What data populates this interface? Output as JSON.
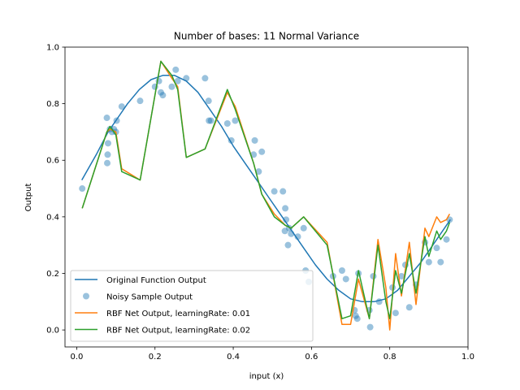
{
  "chart_data": {
    "type": "line",
    "title": "Number of bases: 11 Normal Variance",
    "xlabel": "input (x)",
    "ylabel": "Output",
    "xlim": [
      -0.03,
      1.0
    ],
    "ylim": [
      -0.06,
      1.0
    ],
    "xticks": [
      0.0,
      0.2,
      0.4,
      0.6,
      0.8,
      1.0
    ],
    "xtick_labels": [
      "0.0",
      "0.2",
      "0.4",
      "0.6",
      "0.8",
      "1.0"
    ],
    "yticks": [
      0.0,
      0.2,
      0.4,
      0.6,
      0.8,
      1.0
    ],
    "ytick_labels": [
      "0.0",
      "0.2",
      "0.4",
      "0.6",
      "0.8",
      "1.0"
    ],
    "grid": false,
    "legend_position": "lower-left",
    "series": [
      {
        "name": "Original Function Output",
        "kind": "line",
        "color": "#1f77b4",
        "x": [
          0.013,
          0.05,
          0.08,
          0.1,
          0.13,
          0.16,
          0.19,
          0.22,
          0.25,
          0.28,
          0.31,
          0.34,
          0.37,
          0.4,
          0.43,
          0.46,
          0.49,
          0.52,
          0.55,
          0.58,
          0.61,
          0.64,
          0.67,
          0.7,
          0.73,
          0.76,
          0.79,
          0.82,
          0.85,
          0.88,
          0.91,
          0.955
        ],
        "values": [
          0.53,
          0.62,
          0.7,
          0.74,
          0.8,
          0.85,
          0.885,
          0.9,
          0.9,
          0.88,
          0.84,
          0.78,
          0.72,
          0.65,
          0.59,
          0.53,
          0.47,
          0.41,
          0.35,
          0.29,
          0.23,
          0.18,
          0.14,
          0.11,
          0.1,
          0.1,
          0.11,
          0.14,
          0.19,
          0.24,
          0.3,
          0.39
        ]
      },
      {
        "name": "Noisy Sample Output",
        "kind": "scatter",
        "color": "#1f77b4",
        "x": [
          0.014,
          0.077,
          0.078,
          0.079,
          0.08,
          0.085,
          0.09,
          0.095,
          0.1,
          0.102,
          0.115,
          0.162,
          0.2,
          0.21,
          0.215,
          0.22,
          0.243,
          0.253,
          0.258,
          0.28,
          0.328,
          0.337,
          0.338,
          0.343,
          0.385,
          0.395,
          0.405,
          0.452,
          0.455,
          0.465,
          0.473,
          0.505,
          0.527,
          0.532,
          0.533,
          0.535,
          0.54,
          0.543,
          0.548,
          0.565,
          0.58,
          0.585,
          0.593,
          0.655,
          0.678,
          0.688,
          0.71,
          0.713,
          0.717,
          0.72,
          0.748,
          0.75,
          0.758,
          0.773,
          0.807,
          0.815,
          0.83,
          0.84,
          0.85,
          0.867,
          0.89,
          0.9,
          0.92,
          0.93,
          0.945,
          0.953
        ],
        "values": [
          0.5,
          0.75,
          0.59,
          0.62,
          0.66,
          0.71,
          0.7,
          0.71,
          0.7,
          0.74,
          0.79,
          0.81,
          0.86,
          0.88,
          0.84,
          0.83,
          0.86,
          0.92,
          0.88,
          0.89,
          0.89,
          0.81,
          0.74,
          0.74,
          0.73,
          0.67,
          0.74,
          0.62,
          0.67,
          0.56,
          0.63,
          0.49,
          0.49,
          0.35,
          0.43,
          0.39,
          0.3,
          0.36,
          0.34,
          0.33,
          0.36,
          0.21,
          0.17,
          0.19,
          0.21,
          0.18,
          0.07,
          0.05,
          0.04,
          0.2,
          0.07,
          0.01,
          0.19,
          0.1,
          0.15,
          0.06,
          0.19,
          0.23,
          0.08,
          0.16,
          0.31,
          0.24,
          0.29,
          0.24,
          0.32,
          0.39
        ]
      },
      {
        "name": "RBF Net Output, learningRate: 0.01",
        "kind": "line",
        "color": "#ff7f0e",
        "x": [
          0.014,
          0.077,
          0.085,
          0.1,
          0.115,
          0.162,
          0.215,
          0.243,
          0.258,
          0.28,
          0.328,
          0.385,
          0.405,
          0.452,
          0.473,
          0.505,
          0.533,
          0.548,
          0.58,
          0.64,
          0.678,
          0.7,
          0.72,
          0.748,
          0.77,
          0.79,
          0.8,
          0.815,
          0.83,
          0.85,
          0.867,
          0.89,
          0.9,
          0.92,
          0.93,
          0.945,
          0.953
        ],
        "values": [
          0.43,
          0.7,
          0.71,
          0.7,
          0.57,
          0.53,
          0.95,
          0.89,
          0.86,
          0.61,
          0.64,
          0.84,
          0.79,
          0.59,
          0.48,
          0.41,
          0.37,
          0.36,
          0.4,
          0.31,
          0.02,
          0.02,
          0.18,
          0.04,
          0.32,
          0.15,
          0.0,
          0.27,
          0.12,
          0.31,
          0.09,
          0.36,
          0.33,
          0.4,
          0.38,
          0.39,
          0.41
        ]
      },
      {
        "name": "RBF Net Output, learningRate: 0.02",
        "kind": "line",
        "color": "#2ca02c",
        "x": [
          0.014,
          0.077,
          0.085,
          0.1,
          0.115,
          0.162,
          0.215,
          0.243,
          0.258,
          0.28,
          0.328,
          0.385,
          0.405,
          0.452,
          0.473,
          0.505,
          0.533,
          0.548,
          0.58,
          0.64,
          0.678,
          0.7,
          0.72,
          0.748,
          0.77,
          0.79,
          0.8,
          0.815,
          0.83,
          0.85,
          0.867,
          0.89,
          0.9,
          0.92,
          0.93,
          0.945,
          0.953
        ],
        "values": [
          0.43,
          0.7,
          0.72,
          0.69,
          0.56,
          0.53,
          0.95,
          0.9,
          0.85,
          0.61,
          0.64,
          0.85,
          0.78,
          0.59,
          0.48,
          0.4,
          0.37,
          0.36,
          0.4,
          0.3,
          0.04,
          0.05,
          0.21,
          0.04,
          0.3,
          0.1,
          0.04,
          0.21,
          0.13,
          0.27,
          0.13,
          0.33,
          0.26,
          0.35,
          0.32,
          0.35,
          0.38
        ]
      }
    ]
  }
}
